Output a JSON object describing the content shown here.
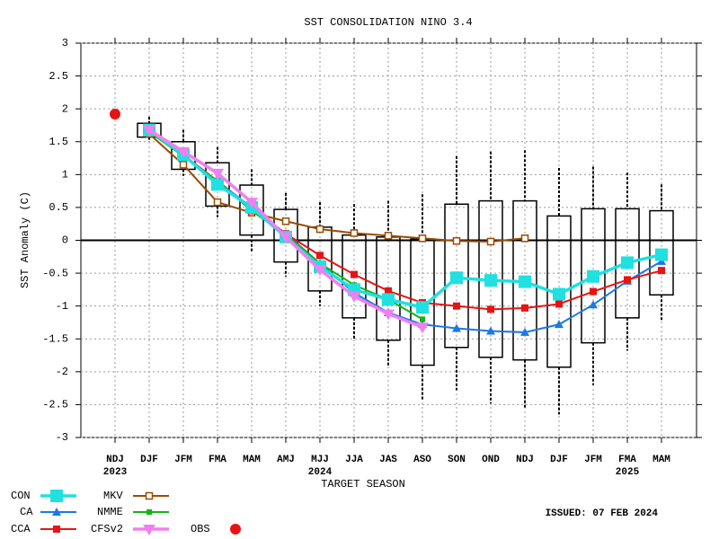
{
  "chart_data": {
    "type": "line",
    "title": "SST CONSOLIDATION NINO 3.4",
    "y_label": "SST Anomaly (C)",
    "x_label": "TARGET SEASON",
    "issued": "ISSUED: 07 FEB 2024",
    "categories": [
      "NDJ",
      "DJF",
      "JFM",
      "FMA",
      "MAM",
      "AMJ",
      "MJJ",
      "JJA",
      "JAS",
      "ASO",
      "SON",
      "OND",
      "NDJ",
      "DJF",
      "JFM",
      "FMA",
      "MAM"
    ],
    "year_labels": [
      "2023",
      null,
      null,
      null,
      null,
      null,
      "2024",
      null,
      null,
      null,
      null,
      null,
      null,
      null,
      null,
      "2025",
      null
    ],
    "ylim": [
      -3,
      3
    ],
    "yticks": [
      -3,
      -2.5,
      -2,
      -1.5,
      -1,
      -0.5,
      0,
      0.5,
      1,
      1.5,
      2,
      2.5,
      3
    ],
    "grid": true,
    "spread": {
      "box_low": [
        null,
        1.57,
        1.08,
        0.52,
        0.08,
        -0.33,
        -0.77,
        -1.18,
        -1.52,
        -1.9,
        -1.63,
        -1.78,
        -1.82,
        -1.93,
        -1.56,
        -1.18,
        -0.83
      ],
      "box_high": [
        null,
        1.78,
        1.5,
        1.18,
        0.84,
        0.47,
        0.2,
        0.08,
        0.05,
        0.02,
        0.55,
        0.6,
        0.6,
        0.37,
        0.48,
        0.48,
        0.45
      ],
      "whisker_low": [
        null,
        1.5,
        0.98,
        0.35,
        -0.18,
        -0.55,
        -1.0,
        -1.5,
        -1.93,
        -2.42,
        -2.28,
        -2.48,
        -2.55,
        -2.65,
        -2.2,
        -1.68,
        -1.22
      ],
      "whisker_high": [
        null,
        1.88,
        1.68,
        1.42,
        1.08,
        0.72,
        0.58,
        0.55,
        0.6,
        0.7,
        1.28,
        1.35,
        1.37,
        1.1,
        1.12,
        1.03,
        0.85
      ]
    },
    "series": [
      {
        "name": "MKV",
        "color": "#994c00",
        "marker": "hollow-square",
        "values": [
          null,
          1.62,
          1.15,
          0.58,
          0.42,
          0.29,
          0.17,
          0.11,
          0.07,
          0.03,
          -0.01,
          -0.02,
          0.03,
          null,
          null,
          null,
          null
        ]
      },
      {
        "name": "CA",
        "color": "#1e78e6",
        "marker": "triangle",
        "values": [
          null,
          1.68,
          1.3,
          0.9,
          0.5,
          0.1,
          -0.35,
          -0.8,
          -1.1,
          -1.28,
          -1.34,
          -1.38,
          -1.4,
          -1.28,
          -0.98,
          -0.62,
          -0.32
        ]
      },
      {
        "name": "CCA",
        "color": "#e61414",
        "marker": "square",
        "values": [
          null,
          1.65,
          1.3,
          0.9,
          0.45,
          0.1,
          -0.23,
          -0.52,
          -0.77,
          -0.95,
          -1.0,
          -1.05,
          -1.03,
          -0.97,
          -0.78,
          -0.6,
          -0.46
        ]
      },
      {
        "name": "NMME",
        "color": "#14b414",
        "marker": "small",
        "values": [
          null,
          1.65,
          1.28,
          0.9,
          0.45,
          0.08,
          -0.35,
          -0.68,
          -0.9,
          -1.2,
          null,
          null,
          null,
          null,
          null,
          null,
          null
        ]
      },
      {
        "name": "CON",
        "color": "#20e0e0",
        "marker": "big-square",
        "values": [
          null,
          1.68,
          1.3,
          0.85,
          0.5,
          0.05,
          -0.4,
          -0.75,
          -0.9,
          -1.02,
          -0.57,
          -0.61,
          -0.63,
          -0.82,
          -0.55,
          -0.34,
          -0.22
        ]
      },
      {
        "name": "CFSv2",
        "color": "#f080f0",
        "marker": "down-triangle",
        "values": [
          null,
          1.68,
          1.35,
          1.02,
          0.58,
          0.05,
          -0.45,
          -0.85,
          -1.12,
          -1.32,
          null,
          null,
          null,
          null,
          null,
          null,
          null
        ]
      },
      {
        "name": "OBS",
        "color": "#e61414",
        "marker": "octagon",
        "values": [
          1.92,
          null,
          null,
          null,
          null,
          null,
          null,
          null,
          null,
          null,
          null,
          null,
          null,
          null,
          null,
          null,
          null
        ]
      }
    ]
  }
}
